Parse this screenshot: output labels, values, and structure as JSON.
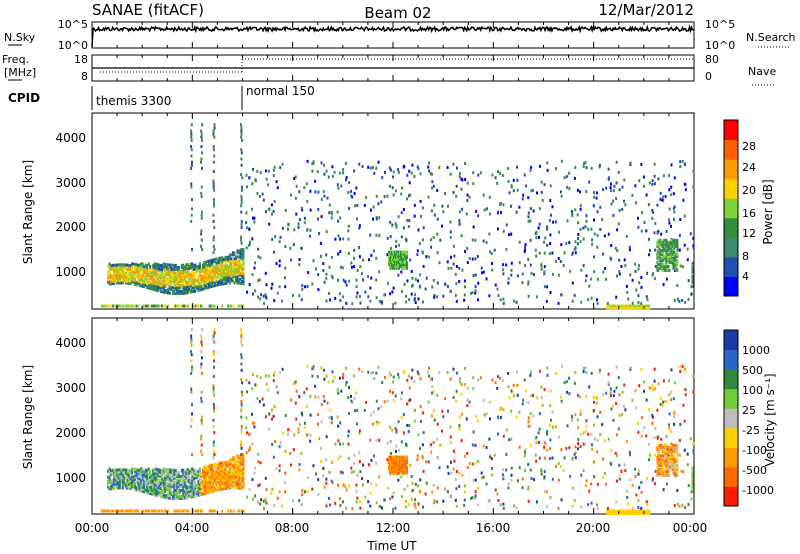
{
  "header": {
    "station": "SANAE (fitACF)",
    "beam": "Beam 02",
    "date": "12/Mar/2012"
  },
  "top_panels": {
    "nsky_label": "N.Sky",
    "nsky_ticks": [
      "10^5",
      "10^0"
    ],
    "nsearch_label": "N.Search",
    "freq_label_1": "Freq.",
    "freq_label_2": "[MHz]",
    "freq_ticks": [
      "18",
      "8"
    ],
    "nave_ticks": [
      "80",
      "0"
    ],
    "nave_label": "Nave",
    "cpid_label": "CPID",
    "cpid_modes": [
      {
        "name": "themis 3300",
        "start_hour": 0
      },
      {
        "name": "normal 150",
        "start_hour": 6
      }
    ]
  },
  "colors": {
    "power_scale": [
      "#0000ff",
      "#1f4fb0",
      "#3a8a6a",
      "#2f8f3a",
      "#7ed43a",
      "#ffd000",
      "#ff9a00",
      "#ff6000",
      "#ff0000"
    ],
    "velocity_scale": [
      "#1a3aa8",
      "#2a66c8",
      "#2e8a3e",
      "#6fcd3a",
      "#bdbdbd",
      "#ffd000",
      "#ff9a00",
      "#ff6a00",
      "#ff1a00"
    ]
  },
  "chart_data": [
    {
      "type": "heatmap",
      "panel": "power",
      "ylabel": "Slant Range [km]",
      "yticks": [
        "1000",
        "2000",
        "3000",
        "4000"
      ],
      "ylim": [
        200,
        4600
      ],
      "xlim": [
        0,
        24
      ],
      "colorbar_label": "Power [dB]",
      "colorbar_ticks": [
        "4",
        "8",
        "12",
        "16",
        "20",
        "24",
        "28"
      ],
      "features": [
        {
          "hours": [
            0.6,
            6.0
          ],
          "range_km": [
            600,
            1500
          ],
          "description": "strong echo band"
        },
        {
          "hours": [
            6.0,
            24.0
          ],
          "range_km": [
            300,
            3600
          ],
          "description": "sparse scatter"
        },
        {
          "hours": [
            11.8,
            12.5
          ],
          "range_km": [
            1100,
            1500
          ],
          "description": "patch"
        },
        {
          "hours": [
            20.5,
            22.2
          ],
          "range_km": [
            250,
            350
          ],
          "description": "near-range band"
        }
      ]
    },
    {
      "type": "heatmap",
      "panel": "velocity",
      "ylabel": "Slant Range [km]",
      "yticks": [
        "1000",
        "2000",
        "3000",
        "4000"
      ],
      "ylim": [
        200,
        4600
      ],
      "xlim": [
        0,
        24
      ],
      "colorbar_label": "Velocity [m s⁻¹]",
      "colorbar_ticks": [
        "1000",
        "500",
        "100",
        "25",
        "-25",
        "-100",
        "-500",
        "-1000"
      ],
      "xticks": [
        "00:00",
        "04:00",
        "08:00",
        "12:00",
        "16:00",
        "20:00",
        "00:00"
      ],
      "xlabel": "Time UT"
    }
  ]
}
